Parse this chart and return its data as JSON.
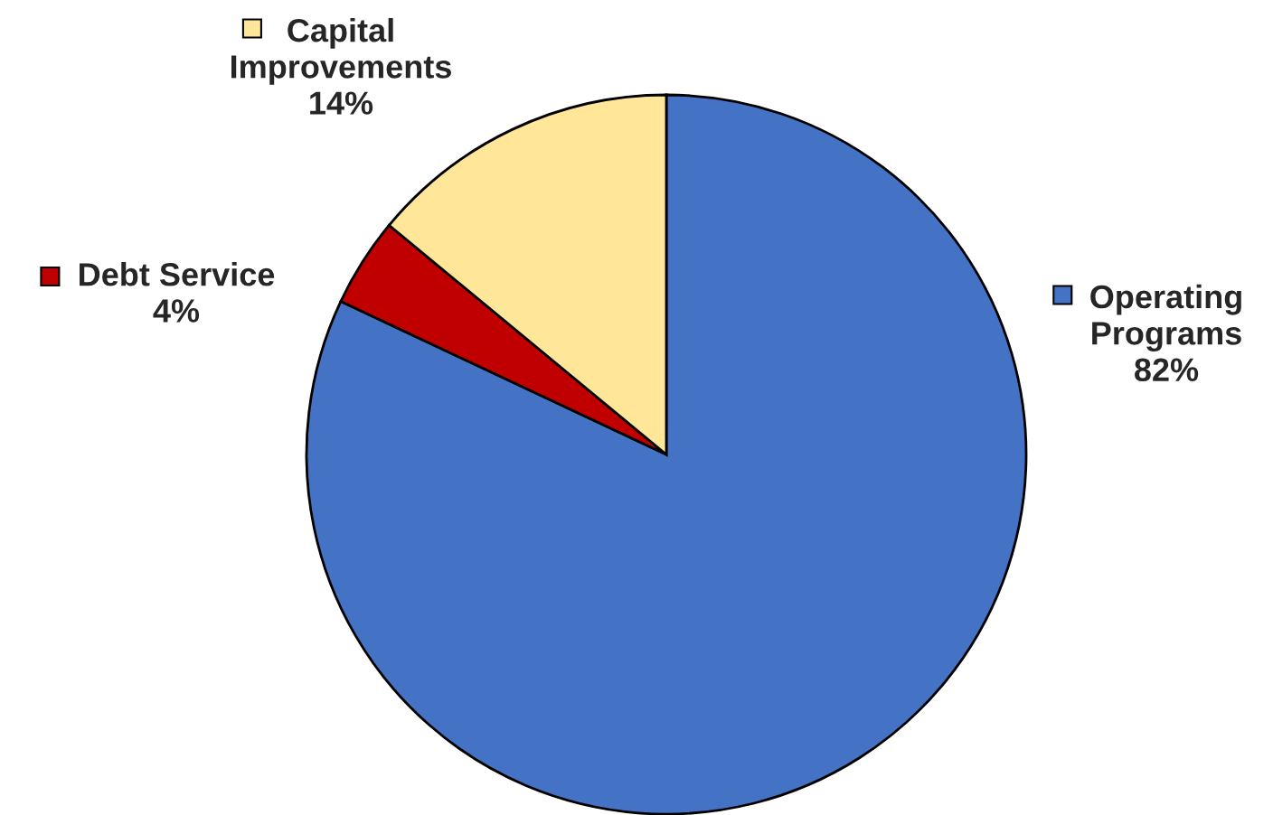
{
  "chart_data": {
    "type": "pie",
    "categories": [
      "Operating Programs",
      "Debt Service",
      "Capital Improvements"
    ],
    "values": [
      82,
      4,
      14
    ],
    "value_labels": [
      "82%",
      "4%",
      "14%"
    ],
    "colors": [
      "#4472c4",
      "#c00000",
      "#ffe699"
    ],
    "legend": "top"
  }
}
